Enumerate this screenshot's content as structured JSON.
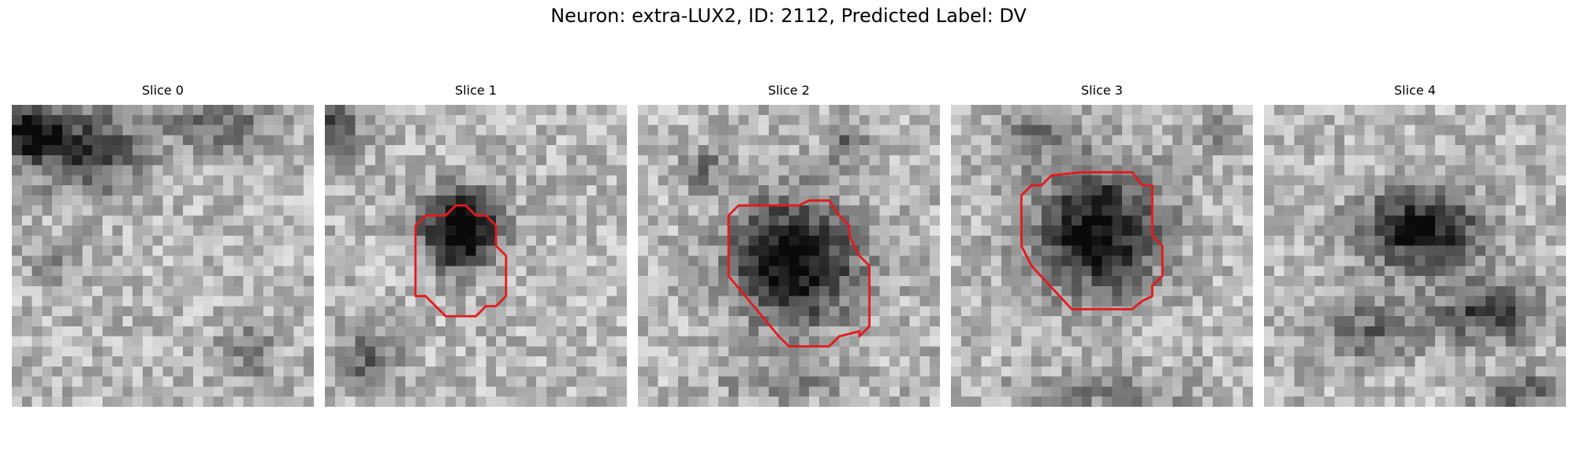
{
  "figure": {
    "title": "Neuron: extra-LUX2, ID: 2112, Predicted Label: DV"
  },
  "panels": [
    {
      "title": "Slice 0",
      "has_contour": false
    },
    {
      "title": "Slice 1",
      "has_contour": true
    },
    {
      "title": "Slice 2",
      "has_contour": true
    },
    {
      "title": "Slice 3",
      "has_contour": true
    },
    {
      "title": "Slice 4",
      "has_contour": false
    }
  ],
  "colors": {
    "contour": "#e41a1c",
    "background": "#ffffff"
  }
}
